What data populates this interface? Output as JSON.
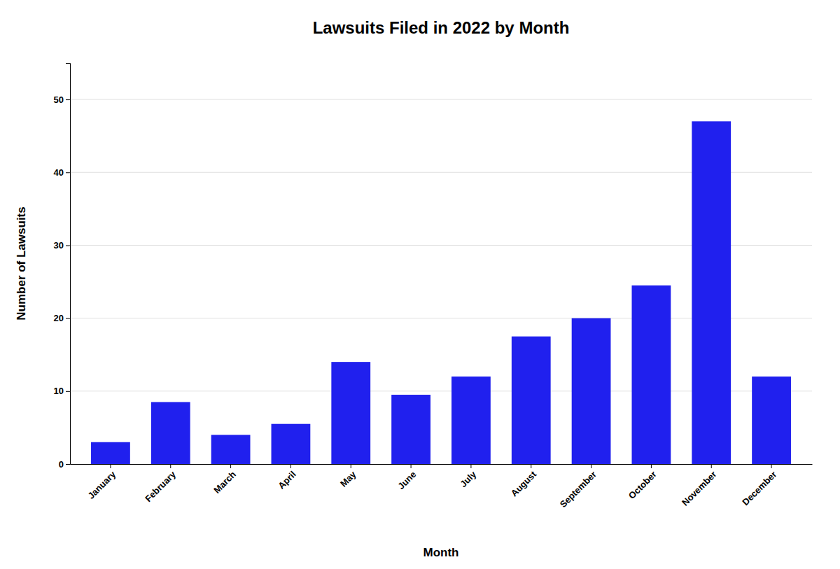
{
  "chart_data": {
    "type": "bar",
    "title": "Lawsuits Filed in 2022 by Month",
    "xlabel": "Month",
    "ylabel": "Number of Lawsuits",
    "categories": [
      "January",
      "February",
      "March",
      "April",
      "May",
      "June",
      "July",
      "August",
      "September",
      "October",
      "November",
      "December"
    ],
    "values": [
      3,
      8.5,
      4,
      5.5,
      14,
      9.5,
      12,
      17.5,
      20,
      24.5,
      47,
      12
    ],
    "color": "#2020ee",
    "ylim": [
      0,
      55
    ],
    "yticks": [
      0,
      10,
      20,
      30,
      40,
      50
    ],
    "grid": true
  }
}
